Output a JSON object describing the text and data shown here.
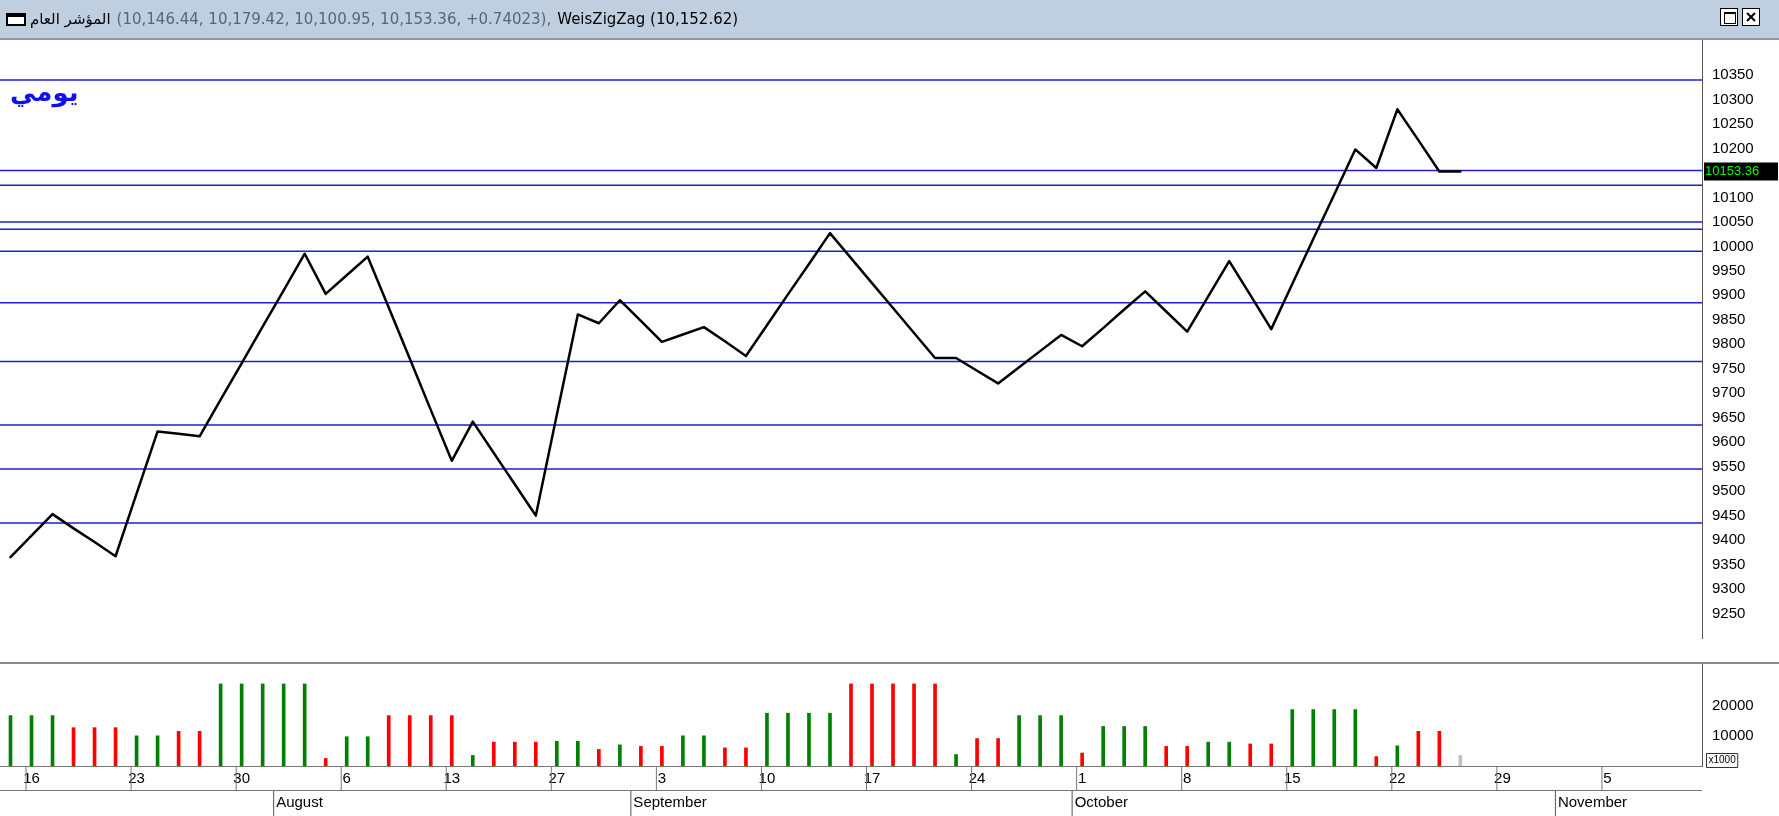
{
  "chart_data": [
    {
      "type": "line",
      "title": "المؤشر العام",
      "subtitle": "(10,146.44, 10,179.42, 10,100.95, 10,153.36, +0.74023),",
      "categories": [
        null,
        "16",
        null,
        null,
        null,
        null,
        "23",
        null,
        null,
        null,
        null,
        "30",
        null,
        null,
        null,
        null,
        "6",
        null,
        null,
        null,
        null,
        "13",
        null,
        null,
        null,
        null,
        "27",
        null,
        null,
        null,
        null,
        "3",
        null,
        null,
        null,
        null,
        "10",
        null,
        null,
        null,
        null,
        "17",
        null,
        null,
        null,
        null,
        "24",
        null,
        null,
        null,
        null,
        "1",
        null,
        null,
        null,
        null,
        "8",
        null,
        null,
        null,
        null,
        "15",
        null,
        null,
        null,
        null,
        "22",
        null,
        null,
        null,
        null,
        "29",
        null,
        null,
        null,
        null,
        "5",
        null,
        null,
        null,
        null
      ],
      "series": [
        {
          "name": "WeisZigZag (10,152.62)",
          "color": "#000000",
          "values": [
            9365,
            9409,
            9453,
            9424,
            9396,
            9367,
            9495,
            9622,
            9617,
            9612,
            9687,
            9761,
            9836,
            9910,
            9985,
            9903,
            9941,
            9979,
            9875,
            9771,
            9666,
            9562,
            9642,
            9578,
            9514,
            9450,
            9656,
            9861,
            9843,
            9890,
            9848,
            9805,
            9820,
            9835,
            9806,
            9776,
            9839,
            9902,
            9964,
            10027,
            9976,
            9925,
            9874,
            9823,
            9772,
            9772,
            9746,
            9720,
            9753,
            9786,
            9819,
            9796,
            9833,
            9871,
            9908,
            9867,
            9826,
            9898,
            9970,
            9901,
            9831,
            9923,
            10015,
            10106,
            10198,
            10160,
            10280,
            10217,
            10153,
            10153,
            null,
            null,
            null,
            null,
            null,
            null,
            null,
            null,
            null,
            null,
            null
          ]
        }
      ],
      "ylim": [
        9200,
        10395
      ],
      "yticks": [
        9250,
        9300,
        9350,
        9400,
        9450,
        9500,
        9550,
        9600,
        9650,
        9700,
        9750,
        9800,
        9850,
        9900,
        9950,
        10000,
        10050,
        10100,
        10200,
        10250,
        10300,
        10350
      ],
      "tick_labels": "y",
      "marker": "none",
      "grid": false,
      "ref_lines": [
        {
          "axis": "y",
          "value": 10340,
          "color": "#1f1fd0"
        },
        {
          "axis": "y",
          "value": 10155,
          "color": "#1f1fd0"
        },
        {
          "axis": "y",
          "value": 10125,
          "color": "#1f1fd0"
        },
        {
          "axis": "y",
          "value": 10050,
          "color": "#1f1fd0"
        },
        {
          "axis": "y",
          "value": 10035,
          "color": "#1f1fd0"
        },
        {
          "axis": "y",
          "value": 9990,
          "color": "#1f1fd0"
        },
        {
          "axis": "y",
          "value": 9885,
          "color": "#1f1fd0"
        },
        {
          "axis": "y",
          "value": 9765,
          "color": "#1f1fd0"
        },
        {
          "axis": "y",
          "value": 9635,
          "color": "#1f1fd0"
        },
        {
          "axis": "y",
          "value": 9545,
          "color": "#1f1fd0"
        },
        {
          "axis": "y",
          "value": 9435,
          "color": "#1f1fd0"
        }
      ],
      "annotations": [
        "يومي",
        "10153.36"
      ]
    },
    {
      "type": "bar",
      "categories": [
        null,
        "16",
        null,
        null,
        null,
        null,
        "23",
        null,
        null,
        null,
        null,
        "30",
        null,
        null,
        null,
        null,
        "6",
        null,
        null,
        null,
        null,
        "13",
        null,
        null,
        null,
        null,
        "27",
        null,
        null,
        null,
        null,
        "3",
        null,
        null,
        null,
        null,
        "10",
        null,
        null,
        null,
        null,
        "17",
        null,
        null,
        null,
        null,
        "24",
        null,
        null,
        null,
        null,
        "1",
        null,
        null,
        null,
        null,
        "8",
        null,
        null,
        null,
        null,
        "15",
        null,
        null,
        null,
        null,
        "22",
        null,
        null,
        null,
        null,
        "29",
        null,
        null,
        null,
        null,
        "5",
        null,
        null,
        null,
        null
      ],
      "values": [
        16700,
        16700,
        16700,
        12700,
        12700,
        12700,
        10000,
        10000,
        11500,
        11500,
        27200,
        27200,
        27200,
        27200,
        27200,
        2500,
        9700,
        9700,
        16700,
        16700,
        16700,
        16700,
        3500,
        7900,
        7900,
        7900,
        8200,
        8200,
        5500,
        7000,
        6500,
        6500,
        10000,
        10000,
        6000,
        6000,
        17500,
        17500,
        17500,
        17500,
        27200,
        27200,
        27200,
        27200,
        27200,
        3800,
        9100,
        9100,
        16700,
        16700,
        16700,
        4300,
        13100,
        13100,
        13100,
        6500,
        6500,
        7900,
        7900,
        7300,
        7300,
        18700,
        18700,
        18700,
        18700,
        3100,
        6700,
        11500,
        11500,
        3500,
        null,
        null,
        null,
        null,
        null,
        null,
        null,
        null,
        null,
        null,
        null
      ],
      "colors": [
        "#008000",
        "#008000",
        "#008000",
        "#ff0000",
        "#ff0000",
        "#ff0000",
        "#008000",
        "#008000",
        "#ff0000",
        "#ff0000",
        "#008000",
        "#008000",
        "#008000",
        "#008000",
        "#008000",
        "#ff0000",
        "#008000",
        "#008000",
        "#ff0000",
        "#ff0000",
        "#ff0000",
        "#ff0000",
        "#008000",
        "#ff0000",
        "#ff0000",
        "#ff0000",
        "#008000",
        "#008000",
        "#ff0000",
        "#008000",
        "#ff0000",
        "#ff0000",
        "#008000",
        "#008000",
        "#ff0000",
        "#ff0000",
        "#008000",
        "#008000",
        "#008000",
        "#008000",
        "#ff0000",
        "#ff0000",
        "#ff0000",
        "#ff0000",
        "#ff0000",
        "#008000",
        "#ff0000",
        "#ff0000",
        "#008000",
        "#008000",
        "#008000",
        "#ff0000",
        "#008000",
        "#008000",
        "#008000",
        "#ff0000",
        "#ff0000",
        "#008000",
        "#008000",
        "#ff0000",
        "#ff0000",
        "#008000",
        "#008000",
        "#008000",
        "#008000",
        "#ff0000",
        "#008000",
        "#ff0000",
        "#ff0000",
        "#c0c0c0",
        null,
        null,
        null,
        null,
        null,
        null,
        null,
        null,
        null,
        null,
        null
      ],
      "ylim": [
        0,
        29500
      ],
      "yticks": [
        10000,
        20000
      ],
      "grid": false,
      "annotations": [
        "x1000",
        "August",
        "September",
        "October",
        "November"
      ]
    }
  ]
}
